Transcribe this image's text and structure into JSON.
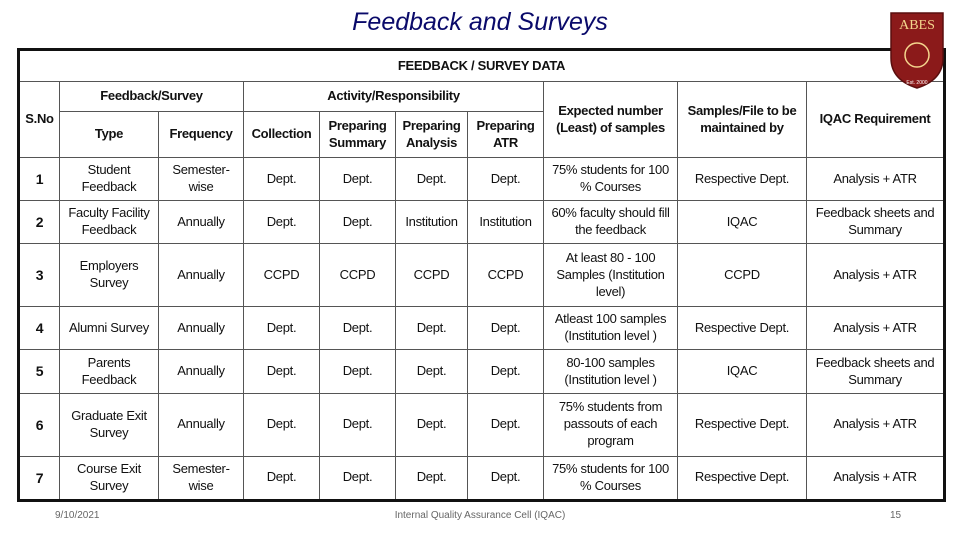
{
  "header": {
    "title": "Feedback and Surveys",
    "logo": "ABES",
    "logo_sub": "Est. 2000"
  },
  "table": {
    "caption": "FEEDBACK / SURVEY DATA",
    "group_headers": [
      "S.No",
      "Feedback/Survey",
      "Activity/Responsibility",
      "Expected number (Least) of samples",
      "Samples/File to be maintained by",
      "IQAC Requirement"
    ],
    "sub_headers": [
      "Type",
      "Frequency",
      "Collection",
      "Preparing Summary",
      "Preparing Analysis",
      "Preparing ATR"
    ],
    "rows": [
      [
        "1",
        "Student Feedback",
        "Semester-wise",
        "Dept.",
        "Dept.",
        "Dept.",
        "Dept.",
        "75% students for 100 % Courses",
        "Respective Dept.",
        "Analysis + ATR"
      ],
      [
        "2",
        "Faculty Facility Feedback",
        "Annually",
        "Dept.",
        "Dept.",
        "Institution",
        "Institution",
        "60% faculty should fill the feedback",
        "IQAC",
        "Feedback sheets and Summary"
      ],
      [
        "3",
        "Employers Survey",
        "Annually",
        "CCPD",
        "CCPD",
        "CCPD",
        "CCPD",
        "At least 80 - 100 Samples (Institution level)",
        "CCPD",
        "Analysis + ATR"
      ],
      [
        "4",
        "Alumni Survey",
        "Annually",
        "Dept.",
        "Dept.",
        "Dept.",
        "Dept.",
        "Atleast 100 samples (Institution level )",
        "Respective Dept.",
        "Analysis + ATR"
      ],
      [
        "5",
        "Parents Feedback",
        "Annually",
        "Dept.",
        "Dept.",
        "Dept.",
        "Dept.",
        "80-100 samples (Institution level )",
        "IQAC",
        "Feedback sheets and Summary"
      ],
      [
        "6",
        "Graduate Exit Survey",
        "Annually",
        "Dept.",
        "Dept.",
        "Dept.",
        "Dept.",
        "75% students from passouts of each program",
        "Respective Dept.",
        "Analysis + ATR"
      ],
      [
        "7",
        "Course Exit Survey",
        "Semester-wise",
        "Dept.",
        "Dept.",
        "Dept.",
        "Dept.",
        "75% students for 100 % Courses",
        "Respective Dept.",
        "Analysis + ATR"
      ]
    ]
  },
  "footer": {
    "date": "9/10/2021",
    "center": "Internal Quality Assurance Cell (IQAC)",
    "page": "15"
  }
}
